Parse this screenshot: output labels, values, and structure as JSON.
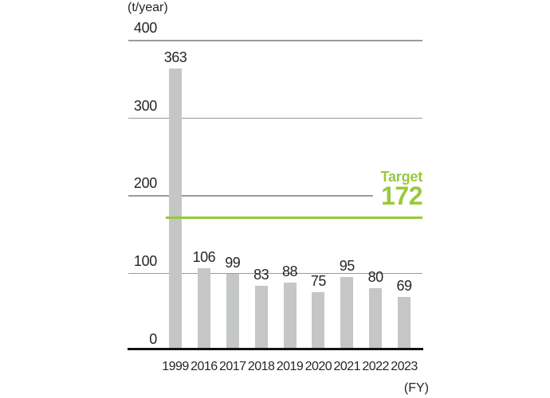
{
  "chart_data": {
    "type": "bar",
    "title": "",
    "unit_label": "(t/year)",
    "fy_label": "(FY)",
    "xlabel": "FY",
    "ylabel": "t/year",
    "categories": [
      "1999",
      "2016",
      "2017",
      "2018",
      "2019",
      "2020",
      "2021",
      "2022",
      "2023"
    ],
    "values": [
      363,
      106,
      99,
      83,
      88,
      75,
      95,
      80,
      69
    ],
    "y_ticks": [
      400,
      300,
      200,
      100,
      0
    ],
    "ylim": [
      0,
      400
    ],
    "grid": true,
    "legend": "none",
    "target": {
      "label": "Target",
      "value": 172
    },
    "colors": {
      "bar": "#c5c6c6",
      "gridline": "#9a9a9a",
      "axis": "#131313",
      "text": "#262626",
      "target_green": "#98c93c",
      "background": "#ffffff"
    }
  }
}
